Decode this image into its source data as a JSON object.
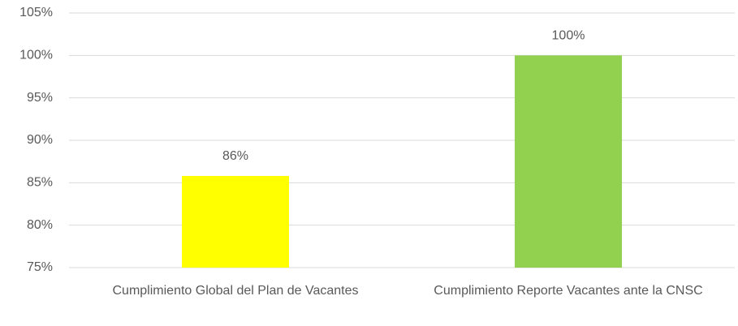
{
  "chart_data": {
    "type": "bar",
    "categories": [
      "Cumplimiento Global del Plan de Vacantes",
      "Cumplimiento Reporte Vacantes ante la CNSC"
    ],
    "values": [
      85.8,
      100
    ],
    "value_labels": [
      "86%",
      "100%"
    ],
    "colors": [
      "#ffff00",
      "#92d050"
    ],
    "ylim": [
      75,
      105
    ],
    "yticks": [
      {
        "value": 75,
        "label": "75%"
      },
      {
        "value": 80,
        "label": "80%"
      },
      {
        "value": 85,
        "label": "85%"
      },
      {
        "value": 90,
        "label": "90%"
      },
      {
        "value": 95,
        "label": "95%"
      },
      {
        "value": 100,
        "label": "100%"
      },
      {
        "value": 105,
        "label": "105%"
      }
    ],
    "grid": true
  }
}
